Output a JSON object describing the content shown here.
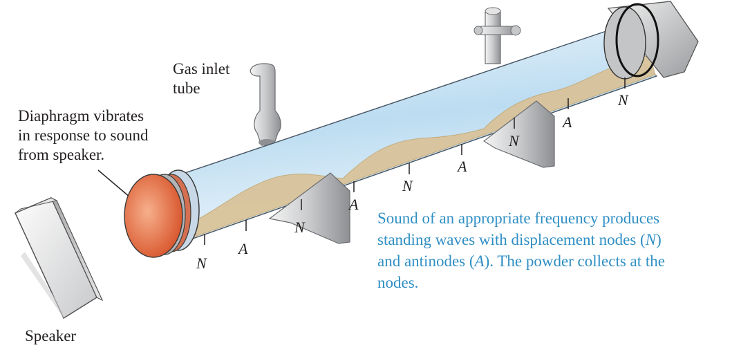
{
  "labels": {
    "gas_inlet_line1": "Gas inlet",
    "gas_inlet_line2": "tube",
    "diaphragm_line1": "Diaphragm vibrates",
    "diaphragm_line2": "in response to sound",
    "diaphragm_line3": "from speaker.",
    "speaker": "Speaker"
  },
  "caption": {
    "line1": "Sound of an appropriate frequency produces",
    "line2_pre": "standing waves with displacement nodes (",
    "line2_sym": "N",
    "line2_post": ")",
    "line3_pre": "and antinodes (",
    "line3_sym": "A",
    "line3_post": "). The powder collects at the",
    "line4": "nodes."
  },
  "markers": {
    "node": "N",
    "antinode": "A",
    "sequence": [
      "N",
      "A",
      "N",
      "A",
      "N",
      "A",
      "N",
      "A",
      "N"
    ]
  },
  "colors": {
    "caption_text": "#2f8fc4",
    "label_text": "#231f20",
    "powder": "#d9c39a",
    "tube_glass": "#cfe6f6",
    "diaphragm": "#e0734a",
    "metal": "#b8babd"
  }
}
